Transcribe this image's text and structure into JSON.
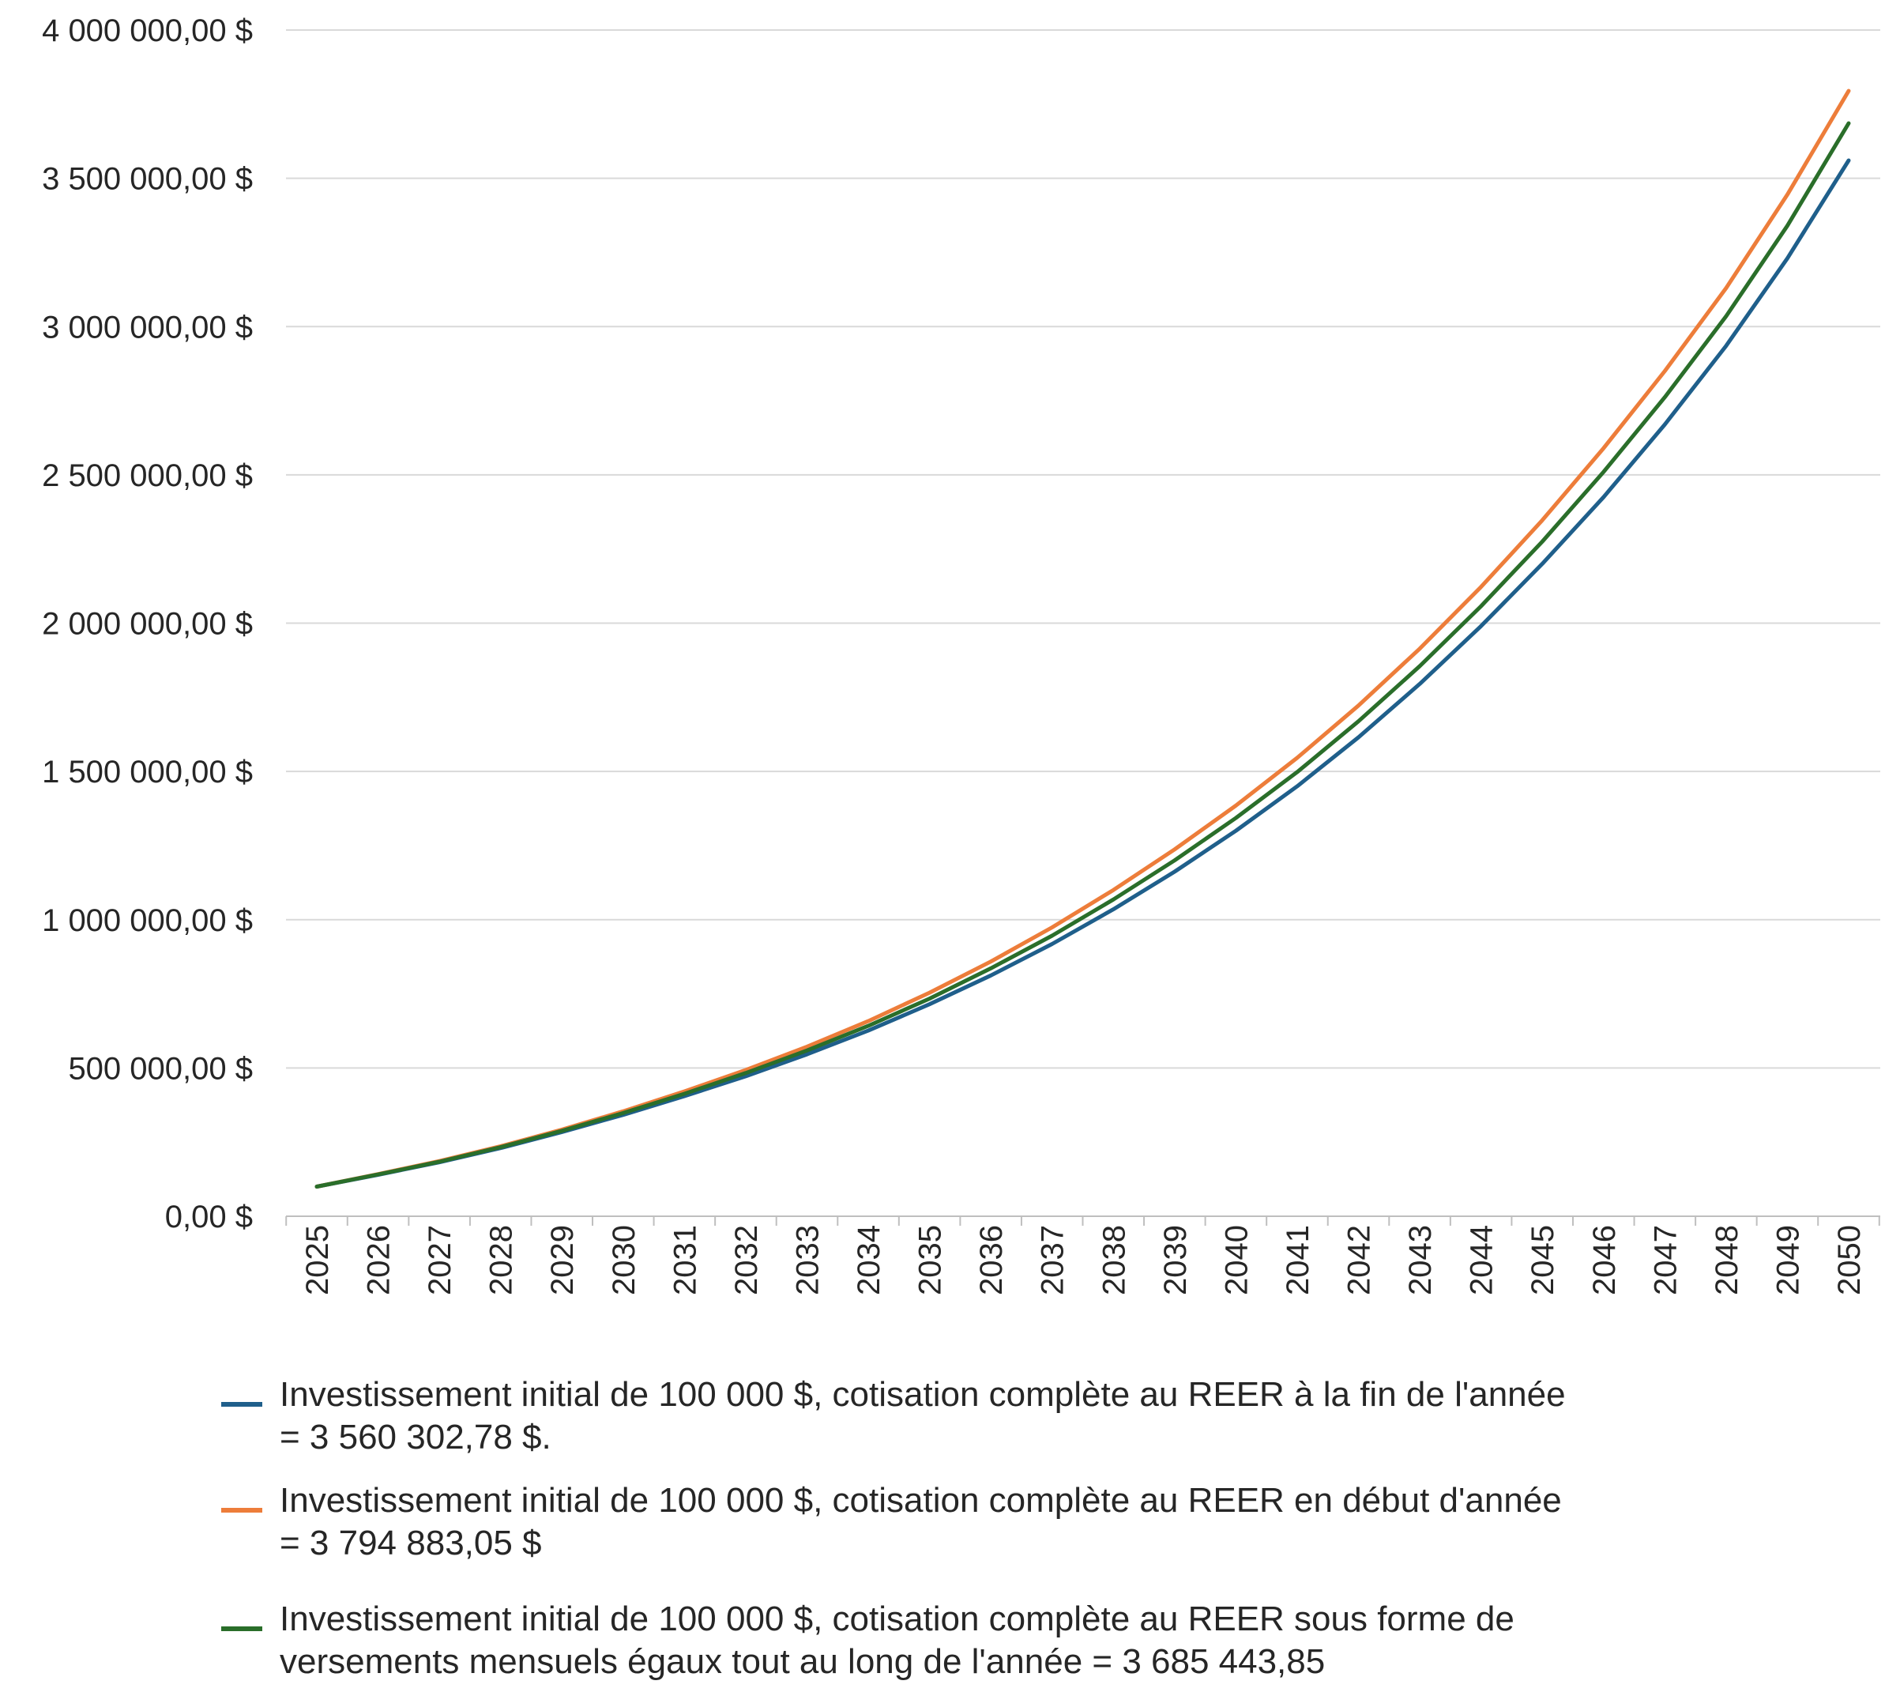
{
  "chart_data": {
    "type": "line",
    "x": [
      "2025",
      "2026",
      "2027",
      "2028",
      "2029",
      "2030",
      "2031",
      "2032",
      "2033",
      "2034",
      "2035",
      "2036",
      "2037",
      "2038",
      "2039",
      "2040",
      "2041",
      "2042",
      "2043",
      "2044",
      "2045",
      "2046",
      "2047",
      "2048",
      "2049",
      "2050"
    ],
    "y_ticks": [
      "0,00 $",
      "500 000,00 $",
      "1 000 000,00 $",
      "1 500 000,00 $",
      "2 000 000,00 $",
      "2 500 000,00 $",
      "3 000 000,00 $",
      "3 500 000,00 $",
      "4 000 000,00 $"
    ],
    "ylim": [
      0,
      4000000
    ],
    "grid": true,
    "legend_position": "bottom",
    "series": [
      {
        "color": "#1f5f8b",
        "legend_lines": [
          "Investissement initial de 100 000 $, cotisation complète au REER à la fin de l'année",
          "= 3 560 302,78 $."
        ],
        "values": [
          100000,
          140000,
          182000,
          230000,
          284000,
          342000,
          405000,
          472000,
          546000,
          626000,
          715000,
          812000,
          918000,
          1035000,
          1162000,
          1300000,
          1450000,
          1615000,
          1795000,
          1990000,
          2200000,
          2425000,
          2670000,
          2935000,
          3230000,
          3560303
        ]
      },
      {
        "color": "#ed7d3a",
        "legend_lines": [
          "Investissement initial de 100 000 $, cotisation complète au REER en début d'année",
          "= 3 794 883,05 $"
        ],
        "values": [
          100000,
          142000,
          186000,
          236000,
          292000,
          354000,
          421000,
          493000,
          572000,
          658000,
          754000,
          859000,
          974000,
          1100000,
          1237000,
          1385000,
          1546000,
          1722000,
          1914000,
          2122000,
          2347000,
          2590000,
          2850000,
          3130000,
          3445000,
          3794883
        ]
      },
      {
        "color": "#2a6e2a",
        "legend_lines": [
          "Investissement initial de 100 000 $, cotisation complète au REER sous forme de",
          "versements mensuels égaux tout au long de l'année = 3 685 443,85"
        ],
        "values": [
          100000,
          141000,
          184000,
          233000,
          288000,
          348000,
          413000,
          483000,
          559000,
          642000,
          734000,
          836000,
          946000,
          1068000,
          1200000,
          1343000,
          1498000,
          1669000,
          1855000,
          2057000,
          2275000,
          2510000,
          2762000,
          3035000,
          3340000,
          3685444
        ]
      }
    ]
  }
}
